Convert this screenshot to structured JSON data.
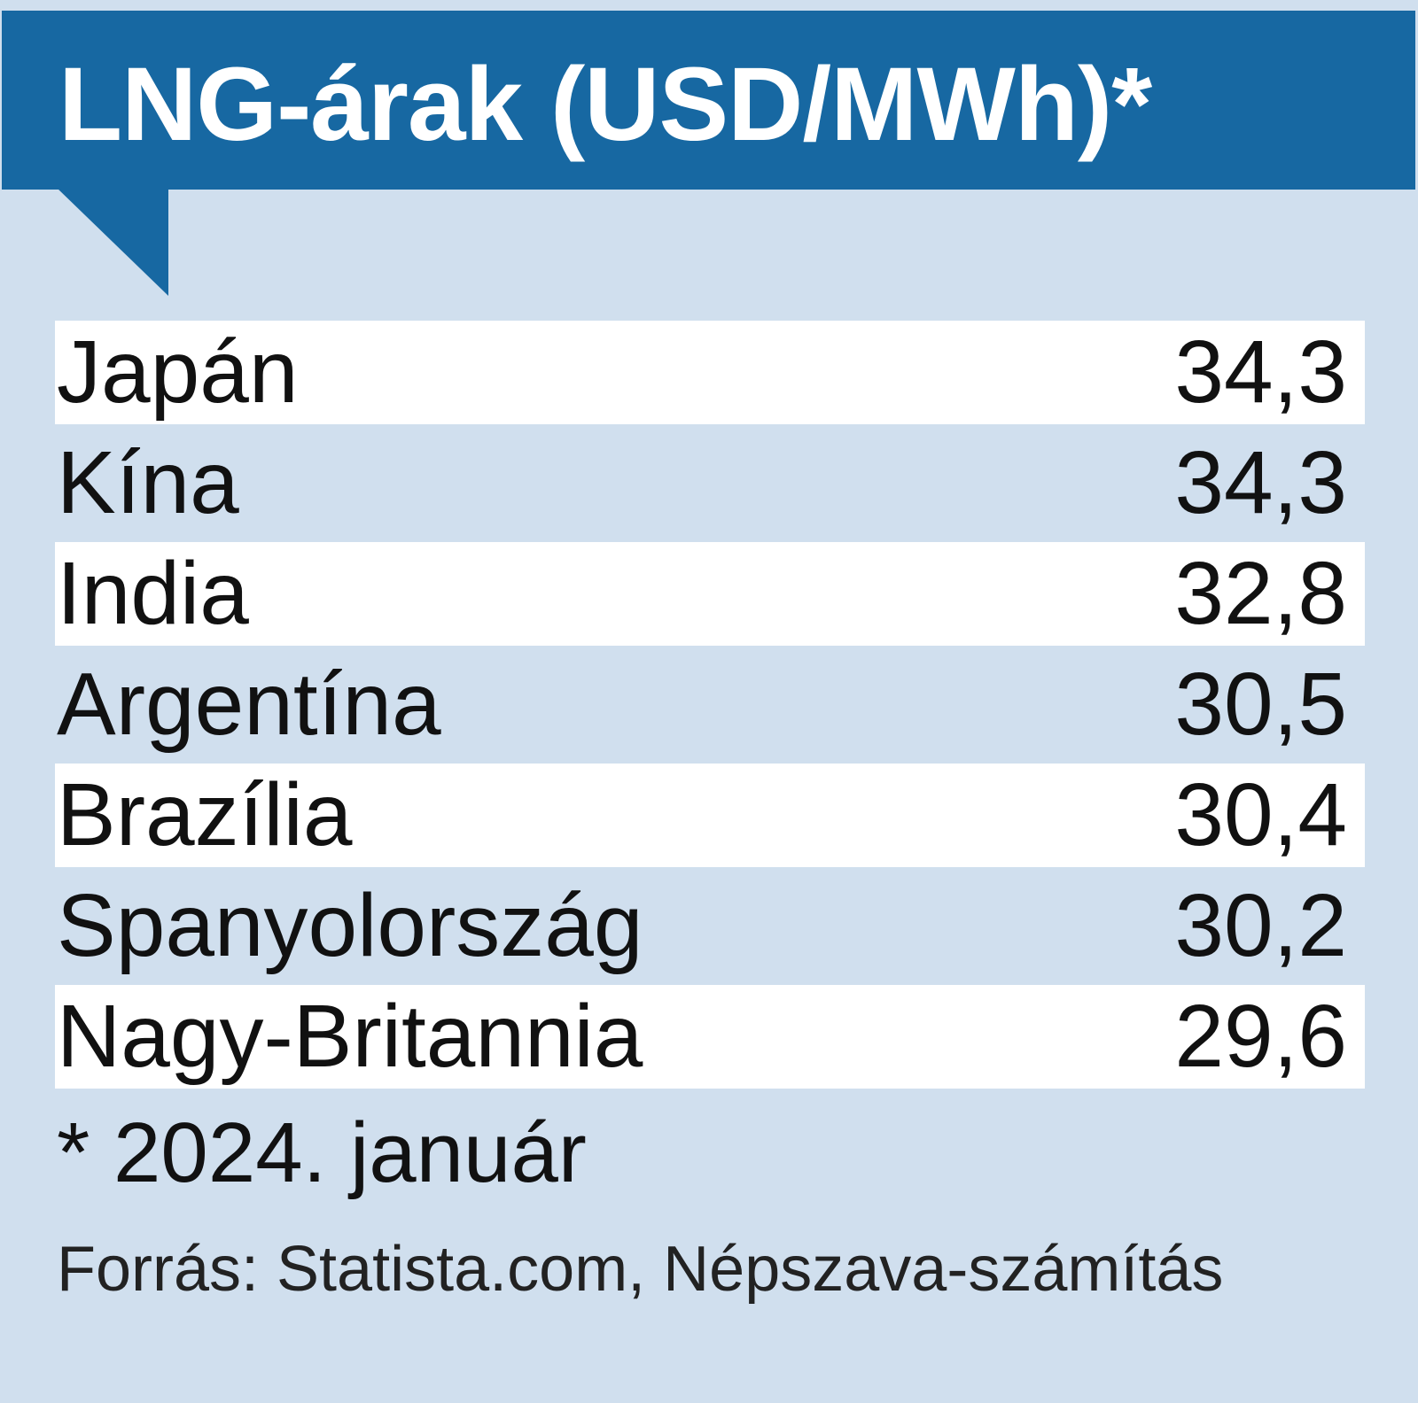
{
  "colors": {
    "header_bg": "#1768a2",
    "panel_bg": "#d0dfee",
    "row_shade": "#ffffff",
    "text": "#111111"
  },
  "header": {
    "title": "LNG-árak (USD/MWh)*"
  },
  "chart_data": {
    "type": "table",
    "title": "LNG-árak (USD/MWh)*",
    "rows": [
      {
        "label": "Japán",
        "value": "34,3",
        "number": 34.3
      },
      {
        "label": "Kína",
        "value": "34,3",
        "number": 34.3
      },
      {
        "label": "India",
        "value": "32,8",
        "number": 32.8
      },
      {
        "label": "Argentína",
        "value": "30,5",
        "number": 30.5
      },
      {
        "label": "Brazília",
        "value": "30,4",
        "number": 30.4
      },
      {
        "label": "Spanyolország",
        "value": "30,2",
        "number": 30.2
      },
      {
        "label": "Nagy-Britannia",
        "value": "29,6",
        "number": 29.6
      }
    ],
    "footnote": "* 2024. január",
    "source": "Forrás: Statista.com, Népszava-számítás"
  }
}
